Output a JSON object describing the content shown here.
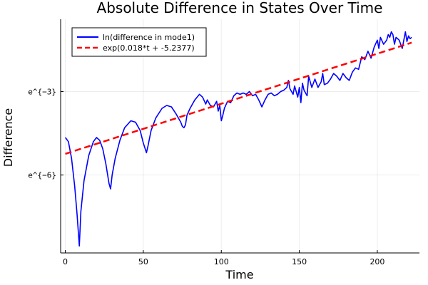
{
  "chart_data": {
    "type": "line",
    "title": "Absolute Difference in States Over Time",
    "xlabel": "Time",
    "ylabel": "Difference",
    "xlim": [
      -3,
      227
    ],
    "ylim": [
      -8.8,
      -0.4
    ],
    "x_ticks": [
      {
        "value": 0,
        "label": "0"
      },
      {
        "value": 50,
        "label": "50"
      },
      {
        "value": 100,
        "label": "100"
      },
      {
        "value": 150,
        "label": "150"
      },
      {
        "value": 200,
        "label": "200"
      }
    ],
    "y_ticks": [
      {
        "value": -3,
        "label": "e^{−3}"
      },
      {
        "value": -6,
        "label": "e^{−6}"
      }
    ],
    "grid": true,
    "legend_position": "top-left",
    "series": [
      {
        "name": "ln(difference in mode1)",
        "color": "#0000ff",
        "style": "solid",
        "points": [
          [
            0,
            -4.65
          ],
          [
            2,
            -4.8
          ],
          [
            4,
            -5.4
          ],
          [
            6,
            -6.4
          ],
          [
            7.5,
            -7.4
          ],
          [
            9,
            -8.55
          ],
          [
            10,
            -7.3
          ],
          [
            12,
            -6.2
          ],
          [
            15,
            -5.3
          ],
          [
            18,
            -4.8
          ],
          [
            20,
            -4.65
          ],
          [
            22,
            -4.75
          ],
          [
            24,
            -5.05
          ],
          [
            26,
            -5.6
          ],
          [
            28,
            -6.3
          ],
          [
            29,
            -6.5
          ],
          [
            30,
            -6.0
          ],
          [
            32,
            -5.4
          ],
          [
            35,
            -4.75
          ],
          [
            38,
            -4.3
          ],
          [
            42,
            -4.05
          ],
          [
            45,
            -4.1
          ],
          [
            48,
            -4.4
          ],
          [
            50,
            -4.85
          ],
          [
            52,
            -5.2
          ],
          [
            53,
            -4.95
          ],
          [
            55,
            -4.4
          ],
          [
            58,
            -3.95
          ],
          [
            62,
            -3.6
          ],
          [
            65,
            -3.5
          ],
          [
            68,
            -3.55
          ],
          [
            71,
            -3.8
          ],
          [
            74,
            -4.1
          ],
          [
            75,
            -4.25
          ],
          [
            76,
            -4.3
          ],
          [
            77,
            -4.2
          ],
          [
            78,
            -3.85
          ],
          [
            80,
            -3.6
          ],
          [
            83,
            -3.3
          ],
          [
            86,
            -3.1
          ],
          [
            88,
            -3.2
          ],
          [
            90,
            -3.45
          ],
          [
            91,
            -3.3
          ],
          [
            93,
            -3.5
          ],
          [
            95,
            -3.55
          ],
          [
            97,
            -3.35
          ],
          [
            98,
            -3.7
          ],
          [
            99,
            -3.5
          ],
          [
            100,
            -4.05
          ],
          [
            101,
            -3.85
          ],
          [
            102,
            -3.6
          ],
          [
            104,
            -3.35
          ],
          [
            106,
            -3.4
          ],
          [
            108,
            -3.15
          ],
          [
            110,
            -3.05
          ],
          [
            112,
            -3.1
          ],
          [
            114,
            -3.05
          ],
          [
            116,
            -3.1
          ],
          [
            118,
            -3.0
          ],
          [
            120,
            -3.15
          ],
          [
            122,
            -3.1
          ],
          [
            124,
            -3.3
          ],
          [
            126,
            -3.55
          ],
          [
            128,
            -3.3
          ],
          [
            130,
            -3.1
          ],
          [
            132,
            -3.05
          ],
          [
            134,
            -3.15
          ],
          [
            136,
            -3.1
          ],
          [
            138,
            -3.0
          ],
          [
            140,
            -2.95
          ],
          [
            142,
            -2.85
          ],
          [
            143,
            -2.6
          ],
          [
            144,
            -2.9
          ],
          [
            146,
            -3.1
          ],
          [
            147,
            -2.8
          ],
          [
            148,
            -3.0
          ],
          [
            149,
            -3.2
          ],
          [
            150,
            -2.85
          ],
          [
            151,
            -3.4
          ],
          [
            152,
            -2.7
          ],
          [
            153,
            -2.95
          ],
          [
            155,
            -3.15
          ],
          [
            156,
            -2.45
          ],
          [
            158,
            -2.85
          ],
          [
            160,
            -2.55
          ],
          [
            162,
            -2.85
          ],
          [
            164,
            -2.65
          ],
          [
            165,
            -2.35
          ],
          [
            166,
            -2.75
          ],
          [
            168,
            -2.7
          ],
          [
            170,
            -2.55
          ],
          [
            172,
            -2.35
          ],
          [
            174,
            -2.45
          ],
          [
            176,
            -2.6
          ],
          [
            178,
            -2.35
          ],
          [
            180,
            -2.5
          ],
          [
            182,
            -2.6
          ],
          [
            184,
            -2.3
          ],
          [
            186,
            -2.15
          ],
          [
            188,
            -2.2
          ],
          [
            190,
            -1.75
          ],
          [
            192,
            -1.85
          ],
          [
            194,
            -1.55
          ],
          [
            196,
            -1.8
          ],
          [
            198,
            -1.4
          ],
          [
            200,
            -1.15
          ],
          [
            201,
            -1.45
          ],
          [
            202,
            -1.05
          ],
          [
            204,
            -1.3
          ],
          [
            206,
            -1.15
          ],
          [
            207,
            -0.95
          ],
          [
            208,
            -1.05
          ],
          [
            209,
            -0.85
          ],
          [
            210,
            -0.95
          ],
          [
            211,
            -1.3
          ],
          [
            212,
            -1.05
          ],
          [
            214,
            -1.15
          ],
          [
            216,
            -1.45
          ],
          [
            218,
            -0.85
          ],
          [
            219,
            -1.2
          ],
          [
            220,
            -1.0
          ],
          [
            221,
            -1.1
          ],
          [
            222,
            -1.05
          ]
        ]
      },
      {
        "name": "exp(0.018*t + -5.2377)",
        "color": "#ff0000",
        "style": "dashed",
        "slope": 0.018,
        "intercept": -5.2377,
        "x_range": [
          0,
          222
        ]
      }
    ]
  }
}
